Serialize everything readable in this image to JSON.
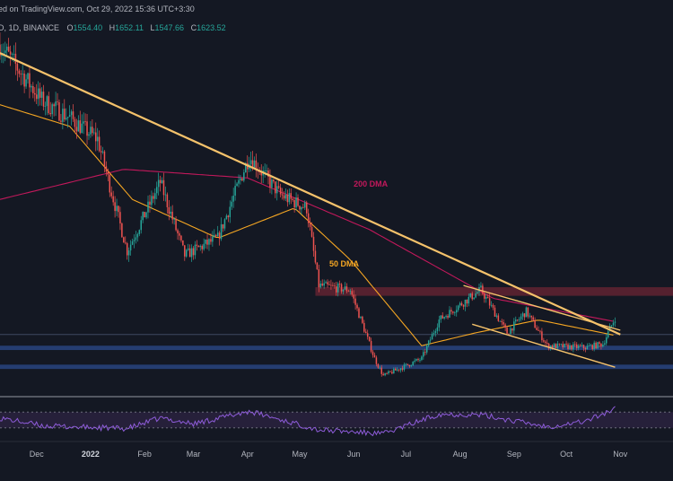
{
  "header": {
    "published_line": "ed on TradingView.com, Oct 29, 2022 15:36 UTC+3:30",
    "symbol_line": "D, 1D, BINANCE",
    "ohlc": [
      {
        "label": "O",
        "value": "1554.40"
      },
      {
        "label": "H",
        "value": "1652.11"
      },
      {
        "label": "L",
        "value": "1547.66"
      },
      {
        "label": "C",
        "value": "1623.52"
      }
    ]
  },
  "colors": {
    "background": "#141823",
    "bullish": "#26a69a",
    "bearish": "#ef5350",
    "trendline": "#f5c26b",
    "dma200": "#c2185b",
    "dma50": "#f5a623",
    "resistance_zone": "#8b2a3a",
    "support_zone": "#2b4a8c",
    "rsi_line": "#8e5cd9",
    "rsi_band": "#2a2340"
  },
  "chart_data": {
    "type": "candlestick",
    "timeframe": "1D",
    "exchange": "BINANCE",
    "x_axis_labels": [
      "Dec",
      "2022",
      "Feb",
      "Mar",
      "Apr",
      "May",
      "Jun",
      "Jul",
      "Aug",
      "Sep",
      "Oct",
      "Nov"
    ],
    "x_axis_dates": [
      "2021-12-01",
      "2022-01-01",
      "2022-02-01",
      "2022-03-01",
      "2022-04-01",
      "2022-05-01",
      "2022-06-01",
      "2022-07-01",
      "2022-08-01",
      "2022-09-01",
      "2022-10-01",
      "2022-11-01"
    ],
    "ylim": [
      750,
      4900
    ],
    "price_anchors": [
      {
        "date": "2021-11-10",
        "price": 4800
      },
      {
        "date": "2021-12-04",
        "price": 4150
      },
      {
        "date": "2021-12-20",
        "price": 3950
      },
      {
        "date": "2022-01-05",
        "price": 3700
      },
      {
        "date": "2022-01-22",
        "price": 2400
      },
      {
        "date": "2022-02-10",
        "price": 3200
      },
      {
        "date": "2022-02-24",
        "price": 2350
      },
      {
        "date": "2022-03-15",
        "price": 2550
      },
      {
        "date": "2022-04-02",
        "price": 3500
      },
      {
        "date": "2022-04-20",
        "price": 3050
      },
      {
        "date": "2022-05-05",
        "price": 2900
      },
      {
        "date": "2022-05-12",
        "price": 2000
      },
      {
        "date": "2022-05-30",
        "price": 1950
      },
      {
        "date": "2022-06-13",
        "price": 1150
      },
      {
        "date": "2022-06-18",
        "price": 950
      },
      {
        "date": "2022-07-10",
        "price": 1150
      },
      {
        "date": "2022-07-20",
        "price": 1600
      },
      {
        "date": "2022-08-13",
        "price": 1950
      },
      {
        "date": "2022-08-28",
        "price": 1450
      },
      {
        "date": "2022-09-08",
        "price": 1700
      },
      {
        "date": "2022-09-20",
        "price": 1300
      },
      {
        "date": "2022-10-12",
        "price": 1280
      },
      {
        "date": "2022-10-22",
        "price": 1320
      },
      {
        "date": "2022-10-29",
        "price": 1623.52
      }
    ],
    "dma_200": [
      {
        "date": "2021-11-10",
        "price": 3000
      },
      {
        "date": "2022-01-20",
        "price": 3350
      },
      {
        "date": "2022-04-01",
        "price": 3250
      },
      {
        "date": "2022-06-10",
        "price": 2650
      },
      {
        "date": "2022-08-20",
        "price": 1850
      },
      {
        "date": "2022-10-29",
        "price": 1580
      }
    ],
    "dma_50": [
      {
        "date": "2021-11-10",
        "price": 4100
      },
      {
        "date": "2021-12-20",
        "price": 3850
      },
      {
        "date": "2022-01-25",
        "price": 3000
      },
      {
        "date": "2022-03-15",
        "price": 2550
      },
      {
        "date": "2022-04-28",
        "price": 2900
      },
      {
        "date": "2022-05-30",
        "price": 2300
      },
      {
        "date": "2022-07-10",
        "price": 1300
      },
      {
        "date": "2022-08-10",
        "price": 1450
      },
      {
        "date": "2022-09-15",
        "price": 1600
      },
      {
        "date": "2022-10-29",
        "price": 1420
      }
    ],
    "trendlines": [
      {
        "name": "main-descending",
        "from": {
          "date": "2021-11-10",
          "price": 4700
        },
        "to": {
          "date": "2022-11-01",
          "price": 1430
        }
      },
      {
        "name": "channel-upper",
        "from": {
          "date": "2022-08-03",
          "price": 2000
        },
        "to": {
          "date": "2022-11-01",
          "price": 1480
        }
      },
      {
        "name": "channel-lower",
        "from": {
          "date": "2022-08-08",
          "price": 1550
        },
        "to": {
          "date": "2022-10-29",
          "price": 1050
        }
      }
    ],
    "zones": [
      {
        "name": "resistance",
        "from": 1980,
        "to": 1880
      },
      {
        "name": "support",
        "from": 1300,
        "to": 1250
      },
      {
        "name": "support-lower",
        "from": 1080,
        "to": 1030
      }
    ],
    "horizontal_lines": [
      1430
    ],
    "annotations": [
      {
        "text": "200 DMA",
        "date": "2022-06-01",
        "price": 3150
      },
      {
        "text": "50 DMA",
        "date": "2022-05-18",
        "price": 2220
      }
    ],
    "rsi": {
      "upper_band": 70,
      "lower_band": 30,
      "anchors": [
        {
          "date": "2021-11-10",
          "value": 55
        },
        {
          "date": "2021-12-05",
          "value": 35
        },
        {
          "date": "2022-01-22",
          "value": 28
        },
        {
          "date": "2022-02-10",
          "value": 55
        },
        {
          "date": "2022-03-01",
          "value": 40
        },
        {
          "date": "2022-04-02",
          "value": 72
        },
        {
          "date": "2022-05-12",
          "value": 25
        },
        {
          "date": "2022-06-18",
          "value": 15
        },
        {
          "date": "2022-07-20",
          "value": 65
        },
        {
          "date": "2022-08-13",
          "value": 63
        },
        {
          "date": "2022-09-20",
          "value": 33
        },
        {
          "date": "2022-10-12",
          "value": 47
        },
        {
          "date": "2022-10-29",
          "value": 78
        }
      ]
    }
  }
}
